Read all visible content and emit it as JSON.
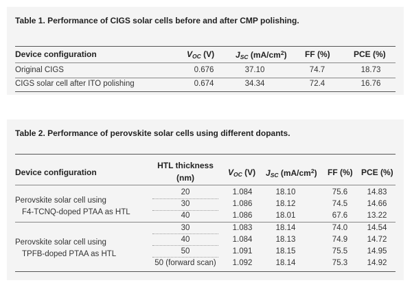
{
  "table1": {
    "caption": "Table 1. Performance of CIGS solar cells before and after CMP polishing.",
    "headers": {
      "device": "Device configuration",
      "voc_main": "V",
      "voc_sub": "OC",
      "voc_unit": "(V)",
      "jsc_main": "J",
      "jsc_sub": "SC",
      "jsc_unit": "(mA/cm",
      "jsc_sup": "2",
      "jsc_close": ")",
      "ff": "FF (%)",
      "pce": "PCE (%)"
    },
    "rows": [
      {
        "device": "Original CIGS",
        "voc": "0.676",
        "jsc": "37.10",
        "ff": "74.7",
        "pce": "18.73"
      },
      {
        "device": "CIGS solar cell after ITO polishing",
        "voc": "0.674",
        "jsc": "34.34",
        "ff": "72.4",
        "pce": "16.76"
      }
    ]
  },
  "table2": {
    "caption": "Table 2. Performance of perovskite solar cells using different dopants.",
    "headers": {
      "device": "Device configuration",
      "htl_line1": "HTL thickness",
      "htl_line2": "(nm)",
      "voc_main": "V",
      "voc_sub": "OC",
      "voc_unit": "(V)",
      "jsc_main": "J",
      "jsc_sub": "SC",
      "jsc_unit": "(mA/cm",
      "jsc_sup": "2",
      "jsc_close": ")",
      "ff": "FF (%)",
      "pce": "PCE (%)"
    },
    "groups": [
      {
        "line1": "Perovskite solar cell using",
        "line2": "F4-TCNQ-doped PTAA as HTL"
      },
      {
        "line1": "Perovskite solar cell using",
        "line2": "TPFB-doped PTAA as HTL"
      }
    ],
    "rows": [
      {
        "htl": "20",
        "voc": "1.084",
        "jsc": "18.10",
        "ff": "75.6",
        "pce": "14.83"
      },
      {
        "htl": "30",
        "voc": "1.086",
        "jsc": "18.12",
        "ff": "74.5",
        "pce": "14.66"
      },
      {
        "htl": "40",
        "voc": "1.086",
        "jsc": "18.01",
        "ff": "67.6",
        "pce": "13.22"
      },
      {
        "htl": "30",
        "voc": "1.083",
        "jsc": "18.14",
        "ff": "74.0",
        "pce": "14.54"
      },
      {
        "htl": "40",
        "voc": "1.084",
        "jsc": "18.13",
        "ff": "74.9",
        "pce": "14.72"
      },
      {
        "htl": "50",
        "voc": "1.091",
        "jsc": "18.15",
        "ff": "75.5",
        "pce": "14.95"
      },
      {
        "htl": "50 (forward scan)",
        "voc": "1.092",
        "jsc": "18.14",
        "ff": "75.3",
        "pce": "14.92"
      }
    ]
  }
}
